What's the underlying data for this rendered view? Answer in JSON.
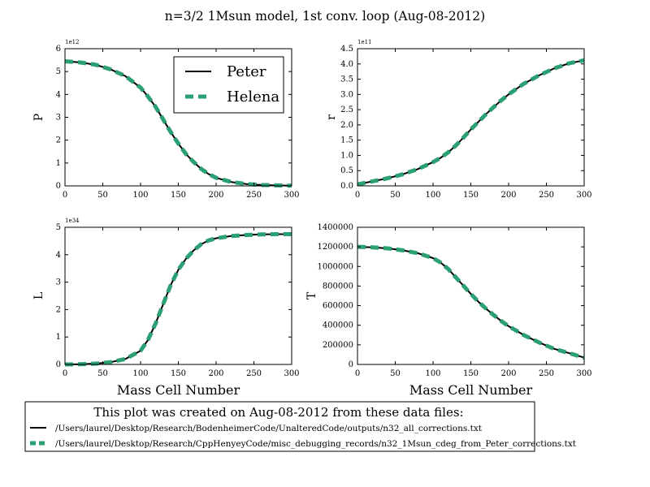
{
  "title": "n=3/2 1Msun model, 1st conv. loop (Aug-08-2012)",
  "colors": {
    "peter": "#000000",
    "helena": "#2aa073",
    "axis": "#000000",
    "background": "#ffffff"
  },
  "series_names": [
    "Peter",
    "Helena"
  ],
  "footer": {
    "caption": "This plot was created on Aug-08-2012 from these data files:",
    "files": [
      "/Users/laurel/Desktop/Research/BodenheimerCode/UnalteredCode/outputs/n32_all_corrections.txt",
      "/Users/laurel/Desktop/Research/CppHenyeyCode/misc_debugging_records/n32_1Msun_cdeg_from_Peter_corrections.txt"
    ]
  },
  "chart_data": [
    {
      "type": "line",
      "ylabel": "P",
      "xlabel": "",
      "multiplier": "1e12",
      "xlim": [
        0,
        300
      ],
      "ylim": [
        0,
        6
      ],
      "xticks": [
        "0",
        "50",
        "100",
        "150",
        "200",
        "250",
        "300"
      ],
      "yticks": [
        "0",
        "1",
        "2",
        "3",
        "4",
        "5",
        "6"
      ],
      "legend": "top-right",
      "x": [
        0,
        20,
        40,
        60,
        80,
        100,
        110,
        120,
        130,
        140,
        150,
        160,
        170,
        180,
        190,
        200,
        220,
        240,
        260,
        280,
        300
      ],
      "series": [
        {
          "name": "Peter",
          "style": "solid",
          "values": [
            5.45,
            5.4,
            5.3,
            5.1,
            4.8,
            4.3,
            3.9,
            3.45,
            2.9,
            2.35,
            1.85,
            1.4,
            1.05,
            0.75,
            0.52,
            0.35,
            0.17,
            0.08,
            0.04,
            0.02,
            0.01
          ]
        },
        {
          "name": "Helena",
          "style": "dashed",
          "values": [
            5.45,
            5.4,
            5.3,
            5.1,
            4.8,
            4.3,
            3.9,
            3.45,
            2.9,
            2.35,
            1.85,
            1.4,
            1.05,
            0.75,
            0.52,
            0.35,
            0.17,
            0.08,
            0.04,
            0.02,
            0.01
          ]
        }
      ]
    },
    {
      "type": "line",
      "ylabel": "r",
      "xlabel": "",
      "multiplier": "1e11",
      "xlim": [
        0,
        300
      ],
      "ylim": [
        0,
        4.5
      ],
      "xticks": [
        "0",
        "50",
        "100",
        "150",
        "200",
        "250",
        "300"
      ],
      "yticks": [
        "0.0",
        "0.5",
        "1.0",
        "1.5",
        "2.0",
        "2.5",
        "3.0",
        "3.5",
        "4.0",
        "4.5"
      ],
      "x": [
        0,
        20,
        40,
        60,
        80,
        100,
        110,
        120,
        130,
        140,
        150,
        160,
        170,
        180,
        190,
        200,
        220,
        240,
        260,
        280,
        300
      ],
      "series": [
        {
          "name": "Peter",
          "style": "solid",
          "values": [
            0.05,
            0.15,
            0.25,
            0.38,
            0.55,
            0.78,
            0.92,
            1.1,
            1.32,
            1.58,
            1.85,
            2.1,
            2.35,
            2.58,
            2.8,
            3.0,
            3.35,
            3.62,
            3.85,
            4.02,
            4.12
          ]
        },
        {
          "name": "Helena",
          "style": "dashed",
          "values": [
            0.05,
            0.15,
            0.25,
            0.38,
            0.55,
            0.78,
            0.92,
            1.1,
            1.32,
            1.58,
            1.85,
            2.1,
            2.35,
            2.58,
            2.8,
            3.0,
            3.35,
            3.62,
            3.85,
            4.02,
            4.12
          ]
        }
      ]
    },
    {
      "type": "line",
      "ylabel": "L",
      "xlabel": "Mass Cell Number",
      "multiplier": "1e34",
      "xlim": [
        0,
        300
      ],
      "ylim": [
        0,
        5
      ],
      "xticks": [
        "0",
        "50",
        "100",
        "150",
        "200",
        "250",
        "300"
      ],
      "yticks": [
        "0",
        "1",
        "2",
        "3",
        "4",
        "5"
      ],
      "x": [
        0,
        20,
        40,
        60,
        80,
        100,
        110,
        120,
        130,
        140,
        150,
        160,
        170,
        180,
        190,
        200,
        220,
        240,
        260,
        280,
        300
      ],
      "series": [
        {
          "name": "Peter",
          "style": "solid",
          "values": [
            0,
            0.01,
            0.03,
            0.08,
            0.2,
            0.5,
            0.9,
            1.5,
            2.2,
            2.9,
            3.45,
            3.85,
            4.15,
            4.38,
            4.52,
            4.6,
            4.68,
            4.72,
            4.74,
            4.75,
            4.75
          ]
        },
        {
          "name": "Helena",
          "style": "dashed",
          "values": [
            0,
            0.01,
            0.03,
            0.08,
            0.2,
            0.5,
            0.9,
            1.5,
            2.2,
            2.9,
            3.45,
            3.85,
            4.15,
            4.38,
            4.52,
            4.6,
            4.68,
            4.72,
            4.74,
            4.75,
            4.75
          ]
        }
      ]
    },
    {
      "type": "line",
      "ylabel": "T",
      "xlabel": "Mass Cell Number",
      "multiplier": "",
      "xlim": [
        0,
        300
      ],
      "ylim": [
        0,
        1400000
      ],
      "xticks": [
        "0",
        "50",
        "100",
        "150",
        "200",
        "250",
        "300"
      ],
      "yticks": [
        "0",
        "200000",
        "400000",
        "600000",
        "800000",
        "1000000",
        "1200000",
        "1400000"
      ],
      "x": [
        0,
        20,
        40,
        60,
        80,
        100,
        110,
        120,
        130,
        140,
        150,
        160,
        170,
        180,
        190,
        200,
        220,
        240,
        260,
        280,
        300
      ],
      "series": [
        {
          "name": "Peter",
          "style": "solid",
          "values": [
            1200000,
            1195000,
            1185000,
            1165000,
            1135000,
            1085000,
            1040000,
            975000,
            890000,
            805000,
            720000,
            640000,
            570000,
            505000,
            445000,
            390000,
            300000,
            225000,
            160000,
            115000,
            70000
          ]
        },
        {
          "name": "Helena",
          "style": "dashed",
          "values": [
            1200000,
            1195000,
            1185000,
            1165000,
            1135000,
            1085000,
            1040000,
            975000,
            890000,
            805000,
            720000,
            640000,
            570000,
            505000,
            445000,
            390000,
            300000,
            225000,
            160000,
            115000,
            70000
          ]
        }
      ]
    }
  ]
}
